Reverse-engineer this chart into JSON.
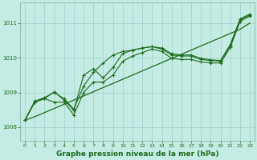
{
  "background_color": "#c5ece4",
  "grid_color": "#9ecfc7",
  "line_color": "#1a6b1a",
  "xlabel": "Graphe pression niveau de la mer (hPa)",
  "xlabel_fontsize": 6.5,
  "xlim": [
    -0.5,
    23.5
  ],
  "ylim": [
    1007.6,
    1011.6
  ],
  "yticks": [
    1008,
    1009,
    1010,
    1011
  ],
  "xticks": [
    0,
    1,
    2,
    3,
    4,
    5,
    6,
    7,
    8,
    9,
    10,
    11,
    12,
    13,
    14,
    15,
    16,
    17,
    18,
    19,
    20,
    21,
    22,
    23
  ],
  "curve1": [
    1008.2,
    1008.75,
    1008.85,
    1009.0,
    1008.82,
    1008.52,
    1009.18,
    1009.58,
    1009.85,
    1010.08,
    1010.18,
    1010.22,
    1010.28,
    1010.32,
    1010.28,
    1010.12,
    1010.08,
    1010.08,
    1009.98,
    1009.94,
    1009.92,
    1010.38,
    1011.12,
    1011.26
  ],
  "curve2": [
    1008.2,
    1008.72,
    1008.82,
    1009.02,
    1008.78,
    1008.48,
    1009.5,
    1009.68,
    1009.42,
    1009.72,
    1010.12,
    1010.22,
    1010.28,
    1010.32,
    1010.25,
    1010.08,
    1010.05,
    1010.05,
    1009.95,
    1009.92,
    1009.9,
    1010.35,
    1011.1,
    1011.23
  ],
  "curve3": [
    1008.2,
    1008.72,
    1008.82,
    1008.72,
    1008.72,
    1008.35,
    1009.0,
    1009.3,
    1009.3,
    1009.5,
    1009.9,
    1010.05,
    1010.15,
    1010.25,
    1010.18,
    1009.98,
    1009.95,
    1009.95,
    1009.88,
    1009.85,
    1009.85,
    1010.3,
    1011.05,
    1011.2
  ],
  "trend_line": [
    1008.2,
    1008.3,
    1008.42,
    1008.54,
    1008.66,
    1008.78,
    1008.9,
    1009.02,
    1009.14,
    1009.26,
    1009.38,
    1009.5,
    1009.62,
    1009.74,
    1009.86,
    1009.98,
    1010.1,
    1010.22,
    1010.34,
    1010.46,
    1010.58,
    1010.7,
    1010.82,
    1011.0
  ]
}
